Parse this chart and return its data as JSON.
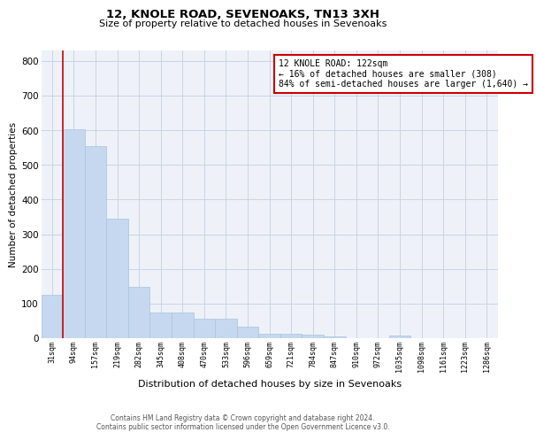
{
  "title": "12, KNOLE ROAD, SEVENOAKS, TN13 3XH",
  "subtitle": "Size of property relative to detached houses in Sevenoaks",
  "xlabel": "Distribution of detached houses by size in Sevenoaks",
  "ylabel": "Number of detached properties",
  "bar_color": "#c5d8ef",
  "bar_edge_color": "#a8c4e0",
  "grid_color": "#c8d4e4",
  "background_color": "#eef2f8",
  "annotation_line_color": "#cc0000",
  "annotation_box_edge_color": "#cc0000",
  "annotation_text": "12 KNOLE ROAD: 122sqm\n← 16% of detached houses are smaller (308)\n84% of semi-detached houses are larger (1,640) →",
  "categories": [
    "31sqm",
    "94sqm",
    "157sqm",
    "219sqm",
    "282sqm",
    "345sqm",
    "408sqm",
    "470sqm",
    "533sqm",
    "596sqm",
    "659sqm",
    "721sqm",
    "784sqm",
    "847sqm",
    "910sqm",
    "972sqm",
    "1035sqm",
    "1098sqm",
    "1161sqm",
    "1223sqm",
    "1286sqm"
  ],
  "values": [
    125,
    603,
    553,
    345,
    147,
    75,
    75,
    55,
    55,
    33,
    14,
    13,
    10,
    5,
    0,
    0,
    7,
    0,
    0,
    0,
    0
  ],
  "ylim": [
    0,
    830
  ],
  "yticks": [
    0,
    100,
    200,
    300,
    400,
    500,
    600,
    700,
    800
  ],
  "footer_line1": "Contains HM Land Registry data © Crown copyright and database right 2024.",
  "footer_line2": "Contains public sector information licensed under the Open Government Licence v3.0."
}
